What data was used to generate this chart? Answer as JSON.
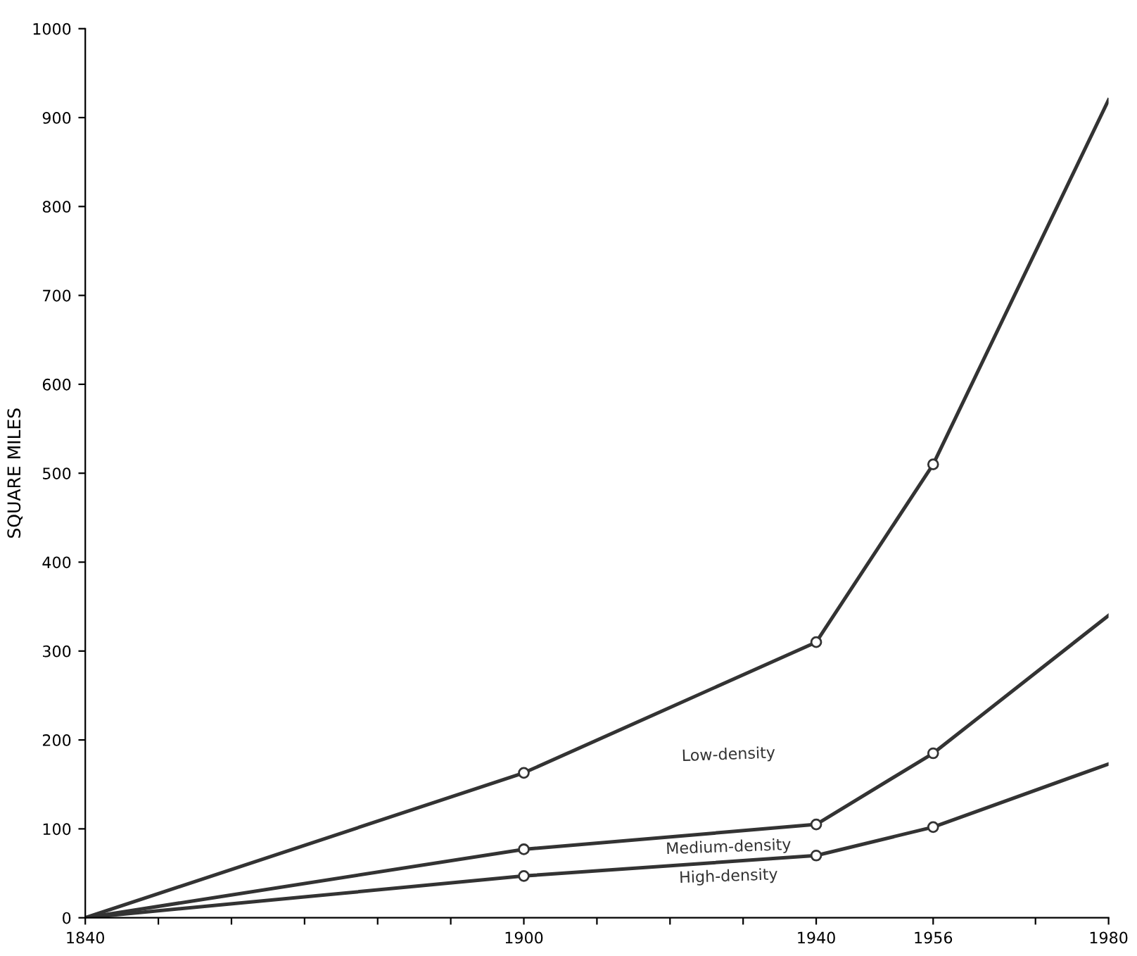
{
  "chart_data": {
    "type": "line",
    "ylabel": "SQUARE MILES",
    "x": [
      1840,
      1900,
      1940,
      1956,
      1980
    ],
    "series": [
      {
        "name": "Low-density",
        "color": "#333333",
        "values": [
          0,
          163,
          310,
          510,
          920
        ]
      },
      {
        "name": "Medium-density",
        "color": "#333333",
        "values": [
          0,
          77,
          105,
          185,
          340
        ]
      },
      {
        "name": "High-density",
        "color": "#333333",
        "values": [
          0,
          47,
          70,
          102,
          173
        ]
      }
    ],
    "xlim": [
      1840,
      1980
    ],
    "ylim": [
      0,
      1000
    ],
    "xticks": [
      1840,
      {
        "value": 1850,
        "label": null
      },
      {
        "value": 1860,
        "label": null
      },
      {
        "value": 1870,
        "label": null
      },
      {
        "value": 1880,
        "label": null
      },
      {
        "value": 1890,
        "label": null
      },
      1900,
      {
        "value": 1910,
        "label": null
      },
      {
        "value": 1920,
        "label": null
      },
      {
        "value": 1930,
        "label": null
      },
      1940,
      1956,
      {
        "value": 1970,
        "label": null
      },
      1980
    ],
    "yticks": [
      0,
      100,
      200,
      300,
      400,
      500,
      600,
      700,
      800,
      900,
      1000
    ],
    "marker": "circle",
    "line_style": "solid",
    "grid": false,
    "legend": false
  }
}
